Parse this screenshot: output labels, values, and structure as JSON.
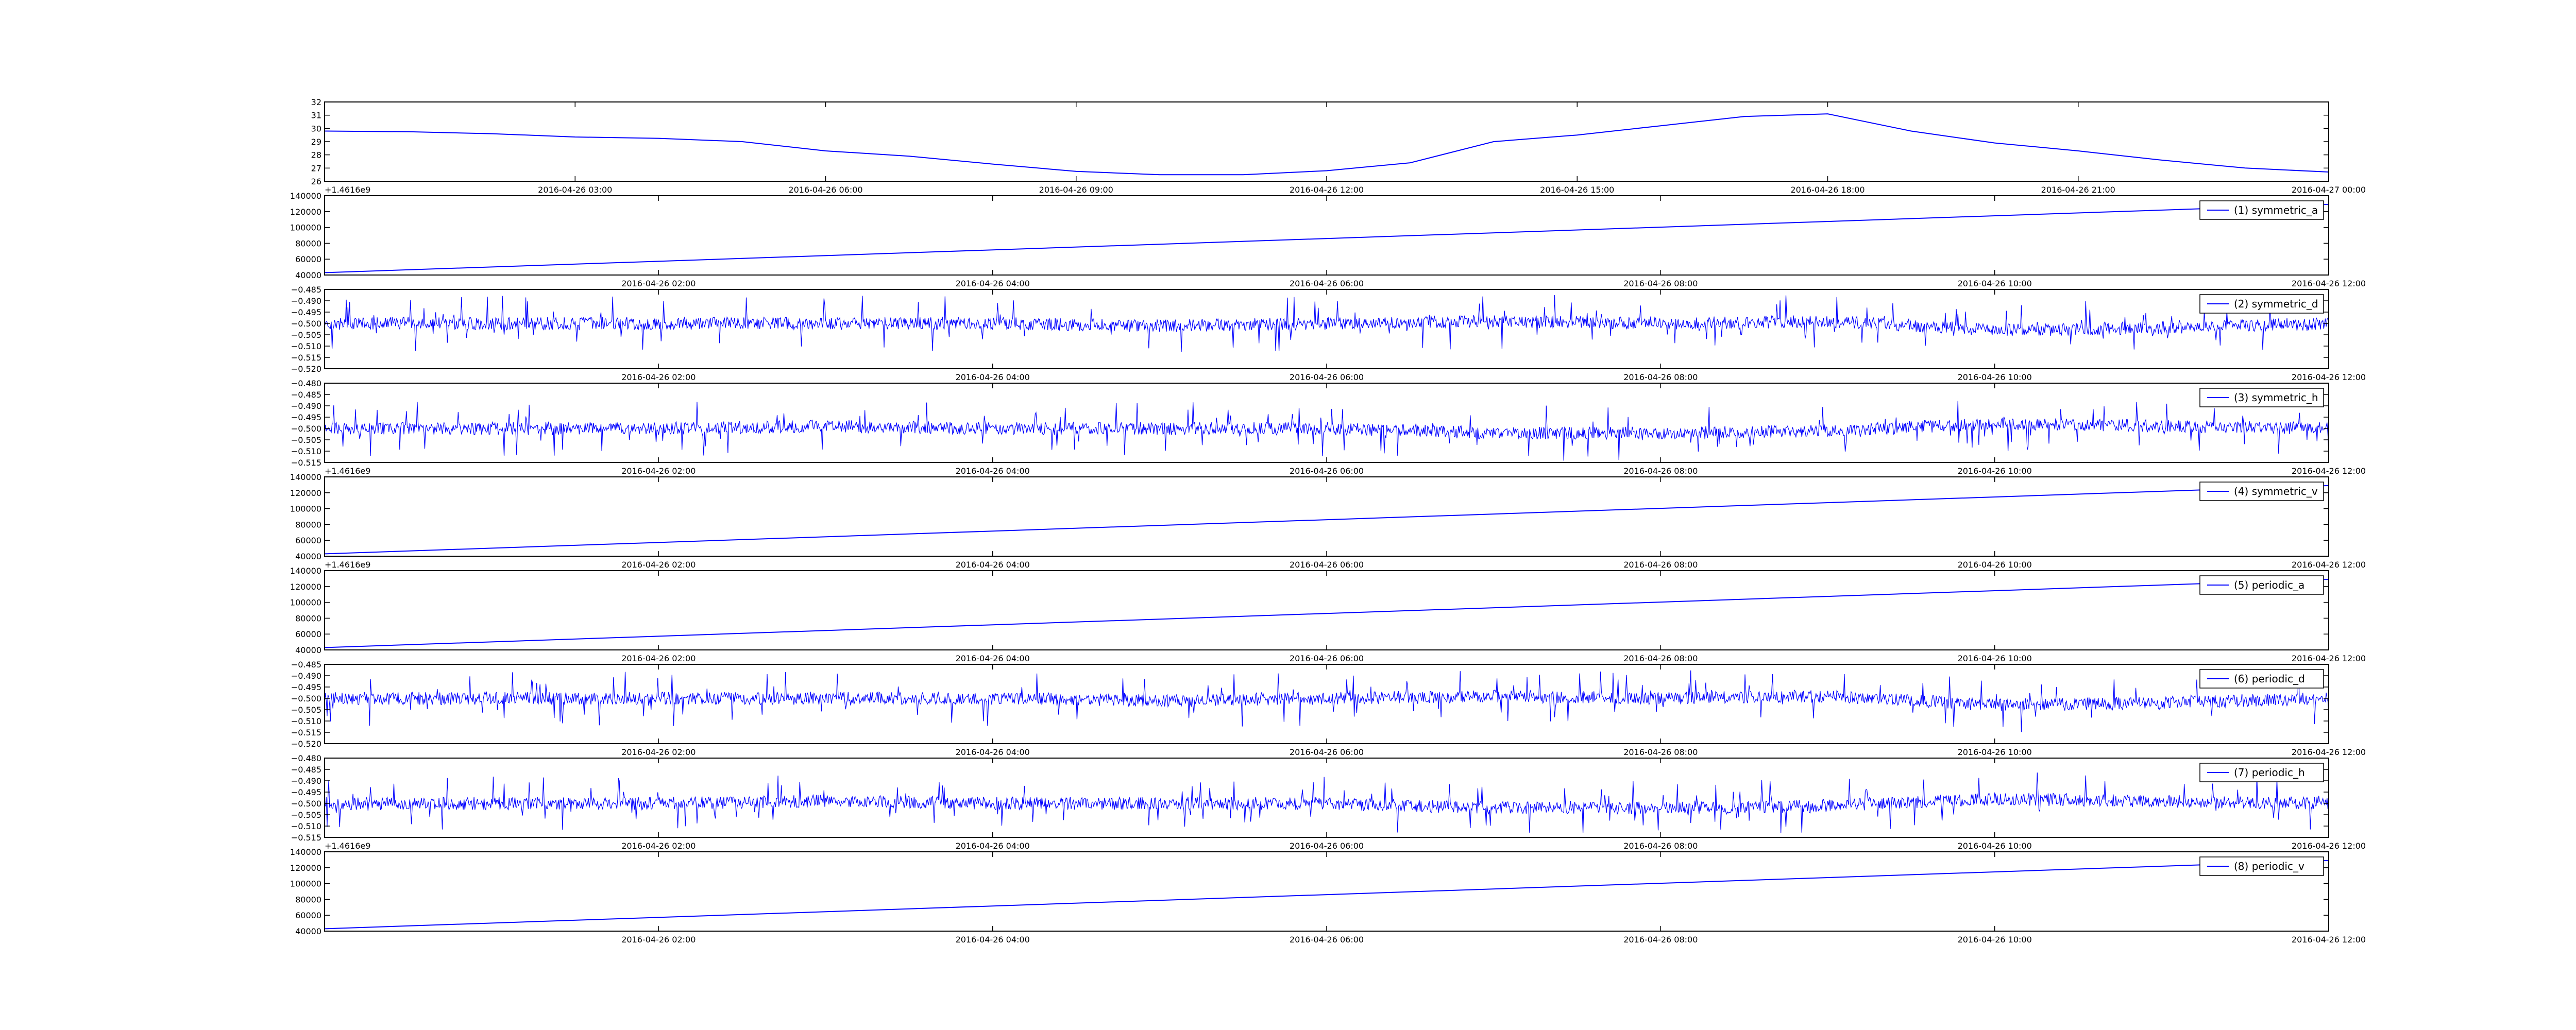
{
  "chart_data": [
    {
      "type": "line",
      "title": "",
      "xlabel": "",
      "ylabel": "",
      "xticks": [
        "2016-04-26 03:00",
        "2016-04-26 06:00",
        "2016-04-26 09:00",
        "2016-04-26 12:00",
        "2016-04-26 15:00",
        "2016-04-26 18:00",
        "2016-04-26 21:00",
        "2016-04-27 00:00"
      ],
      "yticks": [
        "26",
        "27",
        "28",
        "29",
        "30",
        "31",
        "32"
      ],
      "ylim": [
        26,
        32
      ],
      "offset_text": "+1.4616e9",
      "color": "#0000ff",
      "legend": "",
      "series": [
        {
          "x": [
            "2016-04-26 00:00",
            "2016-04-26 01:00",
            "2016-04-26 02:00",
            "2016-04-26 03:00",
            "2016-04-26 04:00",
            "2016-04-26 05:00",
            "2016-04-26 06:00",
            "2016-04-26 07:00",
            "2016-04-26 08:00",
            "2016-04-26 09:00",
            "2016-04-26 10:00",
            "2016-04-26 11:00",
            "2016-04-26 12:00",
            "2016-04-26 13:00",
            "2016-04-26 14:00",
            "2016-04-26 15:00",
            "2016-04-26 16:00",
            "2016-04-26 17:00",
            "2016-04-26 18:00",
            "2016-04-26 19:00",
            "2016-04-26 20:00",
            "2016-04-26 21:00",
            "2016-04-26 22:00",
            "2016-04-26 23:00",
            "2016-04-27 00:00"
          ],
          "y": [
            29.8,
            29.75,
            29.6,
            29.35,
            29.25,
            29.0,
            28.3,
            27.9,
            27.3,
            26.75,
            26.5,
            26.5,
            26.8,
            27.4,
            29.0,
            29.5,
            30.2,
            30.9,
            31.1,
            29.8,
            28.9,
            28.3,
            27.6,
            27.0,
            26.7
          ]
        }
      ]
    },
    {
      "type": "line",
      "title": "",
      "xlabel": "",
      "ylabel": "",
      "xticks": [
        "2016-04-26 02:00",
        "2016-04-26 04:00",
        "2016-04-26 06:00",
        "2016-04-26 08:00",
        "2016-04-26 10:00",
        "2016-04-26 12:00"
      ],
      "yticks": [
        "40000",
        "60000",
        "80000",
        "100000",
        "120000",
        "140000"
      ],
      "ylim": [
        40000,
        140000
      ],
      "color": "#0000ff",
      "legend": "(1) symmetric_a",
      "legend_position": "top-right",
      "series": [
        {
          "name": "(1) symmetric_a",
          "x": [
            "2016-04-26 00:00",
            "2016-04-26 12:00"
          ],
          "y": [
            43000,
            129000
          ]
        }
      ]
    },
    {
      "type": "line",
      "title": "",
      "xlabel": "",
      "ylabel": "",
      "xticks": [
        "2016-04-26 02:00",
        "2016-04-26 04:00",
        "2016-04-26 06:00",
        "2016-04-26 08:00",
        "2016-04-26 10:00",
        "2016-04-26 12:00"
      ],
      "yticks": [
        "−0.520",
        "−0.515",
        "−0.510",
        "−0.505",
        "−0.500",
        "−0.495",
        "−0.490",
        "−0.485"
      ],
      "ylim": [
        -0.52,
        -0.485
      ],
      "color": "#0000ff",
      "legend": "(2) symmetric_d",
      "legend_position": "top-right",
      "series": [
        {
          "name": "(2) symmetric_d",
          "x": [
            "2016-04-26 00:00",
            "2016-04-26 01:00",
            "2016-04-26 02:00",
            "2016-04-26 03:00",
            "2016-04-26 04:00",
            "2016-04-26 05:00",
            "2016-04-26 06:00",
            "2016-04-26 07:00",
            "2016-04-26 08:00",
            "2016-04-26 09:00",
            "2016-04-26 10:00",
            "2016-04-26 11:00",
            "2016-04-26 12:00"
          ],
          "y": [
            -0.5,
            -0.5,
            -0.5,
            -0.5,
            -0.5,
            -0.501,
            -0.5,
            -0.499,
            -0.5,
            -0.499,
            -0.503,
            -0.502,
            -0.5
          ]
        }
      ]
    },
    {
      "type": "line",
      "title": "",
      "xlabel": "",
      "ylabel": "",
      "xticks": [
        "2016-04-26 02:00",
        "2016-04-26 04:00",
        "2016-04-26 06:00",
        "2016-04-26 08:00",
        "2016-04-26 10:00",
        "2016-04-26 12:00"
      ],
      "yticks": [
        "−0.515",
        "−0.510",
        "−0.505",
        "−0.500",
        "−0.495",
        "−0.490",
        "−0.485",
        "−0.480"
      ],
      "ylim": [
        -0.515,
        -0.48
      ],
      "offset_text": "+1.4616e9",
      "color": "#0000ff",
      "legend": "(3) symmetric_h",
      "legend_position": "top-right",
      "series": [
        {
          "name": "(3) symmetric_h",
          "x": [
            "2016-04-26 00:00",
            "2016-04-26 01:00",
            "2016-04-26 02:00",
            "2016-04-26 03:00",
            "2016-04-26 04:00",
            "2016-04-26 05:00",
            "2016-04-26 06:00",
            "2016-04-26 07:00",
            "2016-04-26 08:00",
            "2016-04-26 09:00",
            "2016-04-26 10:00",
            "2016-04-26 11:00",
            "2016-04-26 12:00"
          ],
          "y": [
            -0.5,
            -0.5,
            -0.5,
            -0.499,
            -0.5,
            -0.5,
            -0.5,
            -0.502,
            -0.502,
            -0.501,
            -0.498,
            -0.499,
            -0.5
          ]
        }
      ]
    },
    {
      "type": "line",
      "title": "",
      "xlabel": "",
      "ylabel": "",
      "xticks": [
        "2016-04-26 02:00",
        "2016-04-26 04:00",
        "2016-04-26 06:00",
        "2016-04-26 08:00",
        "2016-04-26 10:00",
        "2016-04-26 12:00"
      ],
      "yticks": [
        "40000",
        "60000",
        "80000",
        "100000",
        "120000",
        "140000"
      ],
      "ylim": [
        40000,
        140000
      ],
      "offset_text": "+1.4616e9",
      "color": "#0000ff",
      "legend": "(4) symmetric_v",
      "legend_position": "top-right",
      "series": [
        {
          "name": "(4) symmetric_v",
          "x": [
            "2016-04-26 00:00",
            "2016-04-26 12:00"
          ],
          "y": [
            43000,
            129000
          ]
        }
      ]
    },
    {
      "type": "line",
      "title": "",
      "xlabel": "",
      "ylabel": "",
      "xticks": [
        "2016-04-26 02:00",
        "2016-04-26 04:00",
        "2016-04-26 06:00",
        "2016-04-26 08:00",
        "2016-04-26 10:00",
        "2016-04-26 12:00"
      ],
      "yticks": [
        "40000",
        "60000",
        "80000",
        "100000",
        "120000",
        "140000"
      ],
      "ylim": [
        40000,
        140000
      ],
      "color": "#0000ff",
      "legend": "(5) periodic_a",
      "legend_position": "top-right",
      "series": [
        {
          "name": "(5) periodic_a",
          "x": [
            "2016-04-26 00:00",
            "2016-04-26 12:00"
          ],
          "y": [
            43000,
            129000
          ]
        }
      ]
    },
    {
      "type": "line",
      "title": "",
      "xlabel": "",
      "ylabel": "",
      "xticks": [
        "2016-04-26 02:00",
        "2016-04-26 04:00",
        "2016-04-26 06:00",
        "2016-04-26 08:00",
        "2016-04-26 10:00",
        "2016-04-26 12:00"
      ],
      "yticks": [
        "−0.520",
        "−0.515",
        "−0.510",
        "−0.505",
        "−0.500",
        "−0.495",
        "−0.490",
        "−0.485"
      ],
      "ylim": [
        -0.52,
        -0.485
      ],
      "color": "#0000ff",
      "legend": "(6) periodic_d",
      "legend_position": "top-right",
      "series": [
        {
          "name": "(6) periodic_d",
          "x": [
            "2016-04-26 00:00",
            "2016-04-26 01:00",
            "2016-04-26 02:00",
            "2016-04-26 03:00",
            "2016-04-26 04:00",
            "2016-04-26 05:00",
            "2016-04-26 06:00",
            "2016-04-26 07:00",
            "2016-04-26 08:00",
            "2016-04-26 09:00",
            "2016-04-26 10:00",
            "2016-04-26 11:00",
            "2016-04-26 12:00"
          ],
          "y": [
            -0.5,
            -0.5,
            -0.5,
            -0.5,
            -0.5,
            -0.501,
            -0.5,
            -0.499,
            -0.5,
            -0.499,
            -0.503,
            -0.502,
            -0.5
          ]
        }
      ]
    },
    {
      "type": "line",
      "title": "",
      "xlabel": "",
      "ylabel": "",
      "xticks": [
        "2016-04-26 02:00",
        "2016-04-26 04:00",
        "2016-04-26 06:00",
        "2016-04-26 08:00",
        "2016-04-26 10:00",
        "2016-04-26 12:00"
      ],
      "yticks": [
        "−0.515",
        "−0.510",
        "−0.505",
        "−0.500",
        "−0.495",
        "−0.490",
        "−0.485",
        "−0.480"
      ],
      "ylim": [
        -0.515,
        -0.48
      ],
      "offset_text": "+1.4616e9",
      "color": "#0000ff",
      "legend": "(7) periodic_h",
      "legend_position": "top-right",
      "series": [
        {
          "name": "(7) periodic_h",
          "x": [
            "2016-04-26 00:00",
            "2016-04-26 01:00",
            "2016-04-26 02:00",
            "2016-04-26 03:00",
            "2016-04-26 04:00",
            "2016-04-26 05:00",
            "2016-04-26 06:00",
            "2016-04-26 07:00",
            "2016-04-26 08:00",
            "2016-04-26 09:00",
            "2016-04-26 10:00",
            "2016-04-26 11:00",
            "2016-04-26 12:00"
          ],
          "y": [
            -0.5,
            -0.5,
            -0.5,
            -0.499,
            -0.5,
            -0.5,
            -0.5,
            -0.502,
            -0.502,
            -0.501,
            -0.498,
            -0.499,
            -0.5
          ]
        }
      ]
    },
    {
      "type": "line",
      "title": "",
      "xlabel": "",
      "ylabel": "",
      "xticks": [
        "2016-04-26 02:00",
        "2016-04-26 04:00",
        "2016-04-26 06:00",
        "2016-04-26 08:00",
        "2016-04-26 10:00",
        "2016-04-26 12:00"
      ],
      "yticks": [
        "40000",
        "60000",
        "80000",
        "100000",
        "120000",
        "140000"
      ],
      "ylim": [
        40000,
        140000
      ],
      "color": "#0000ff",
      "legend": "(8) periodic_v",
      "legend_position": "top-right",
      "series": [
        {
          "name": "(8) periodic_v",
          "x": [
            "2016-04-26 00:00",
            "2016-04-26 12:00"
          ],
          "y": [
            43000,
            129000
          ]
        }
      ]
    }
  ]
}
